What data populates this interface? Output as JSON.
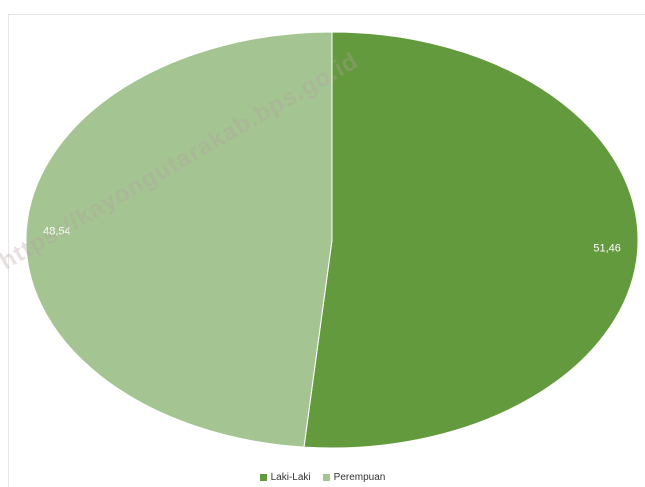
{
  "chart_data": {
    "type": "pie",
    "title": "",
    "categories": [
      "Laki-Laki",
      "Perempuan"
    ],
    "values": [
      51.46,
      48.54
    ],
    "data_labels": [
      "51,46",
      "48,54"
    ],
    "colors": [
      "#639a3e",
      "#a4c592"
    ],
    "legend_position": "bottom-center",
    "start_angle": "12 o'clock, clockwise"
  },
  "watermark": "https://kayongutarakab.bps.go.id"
}
